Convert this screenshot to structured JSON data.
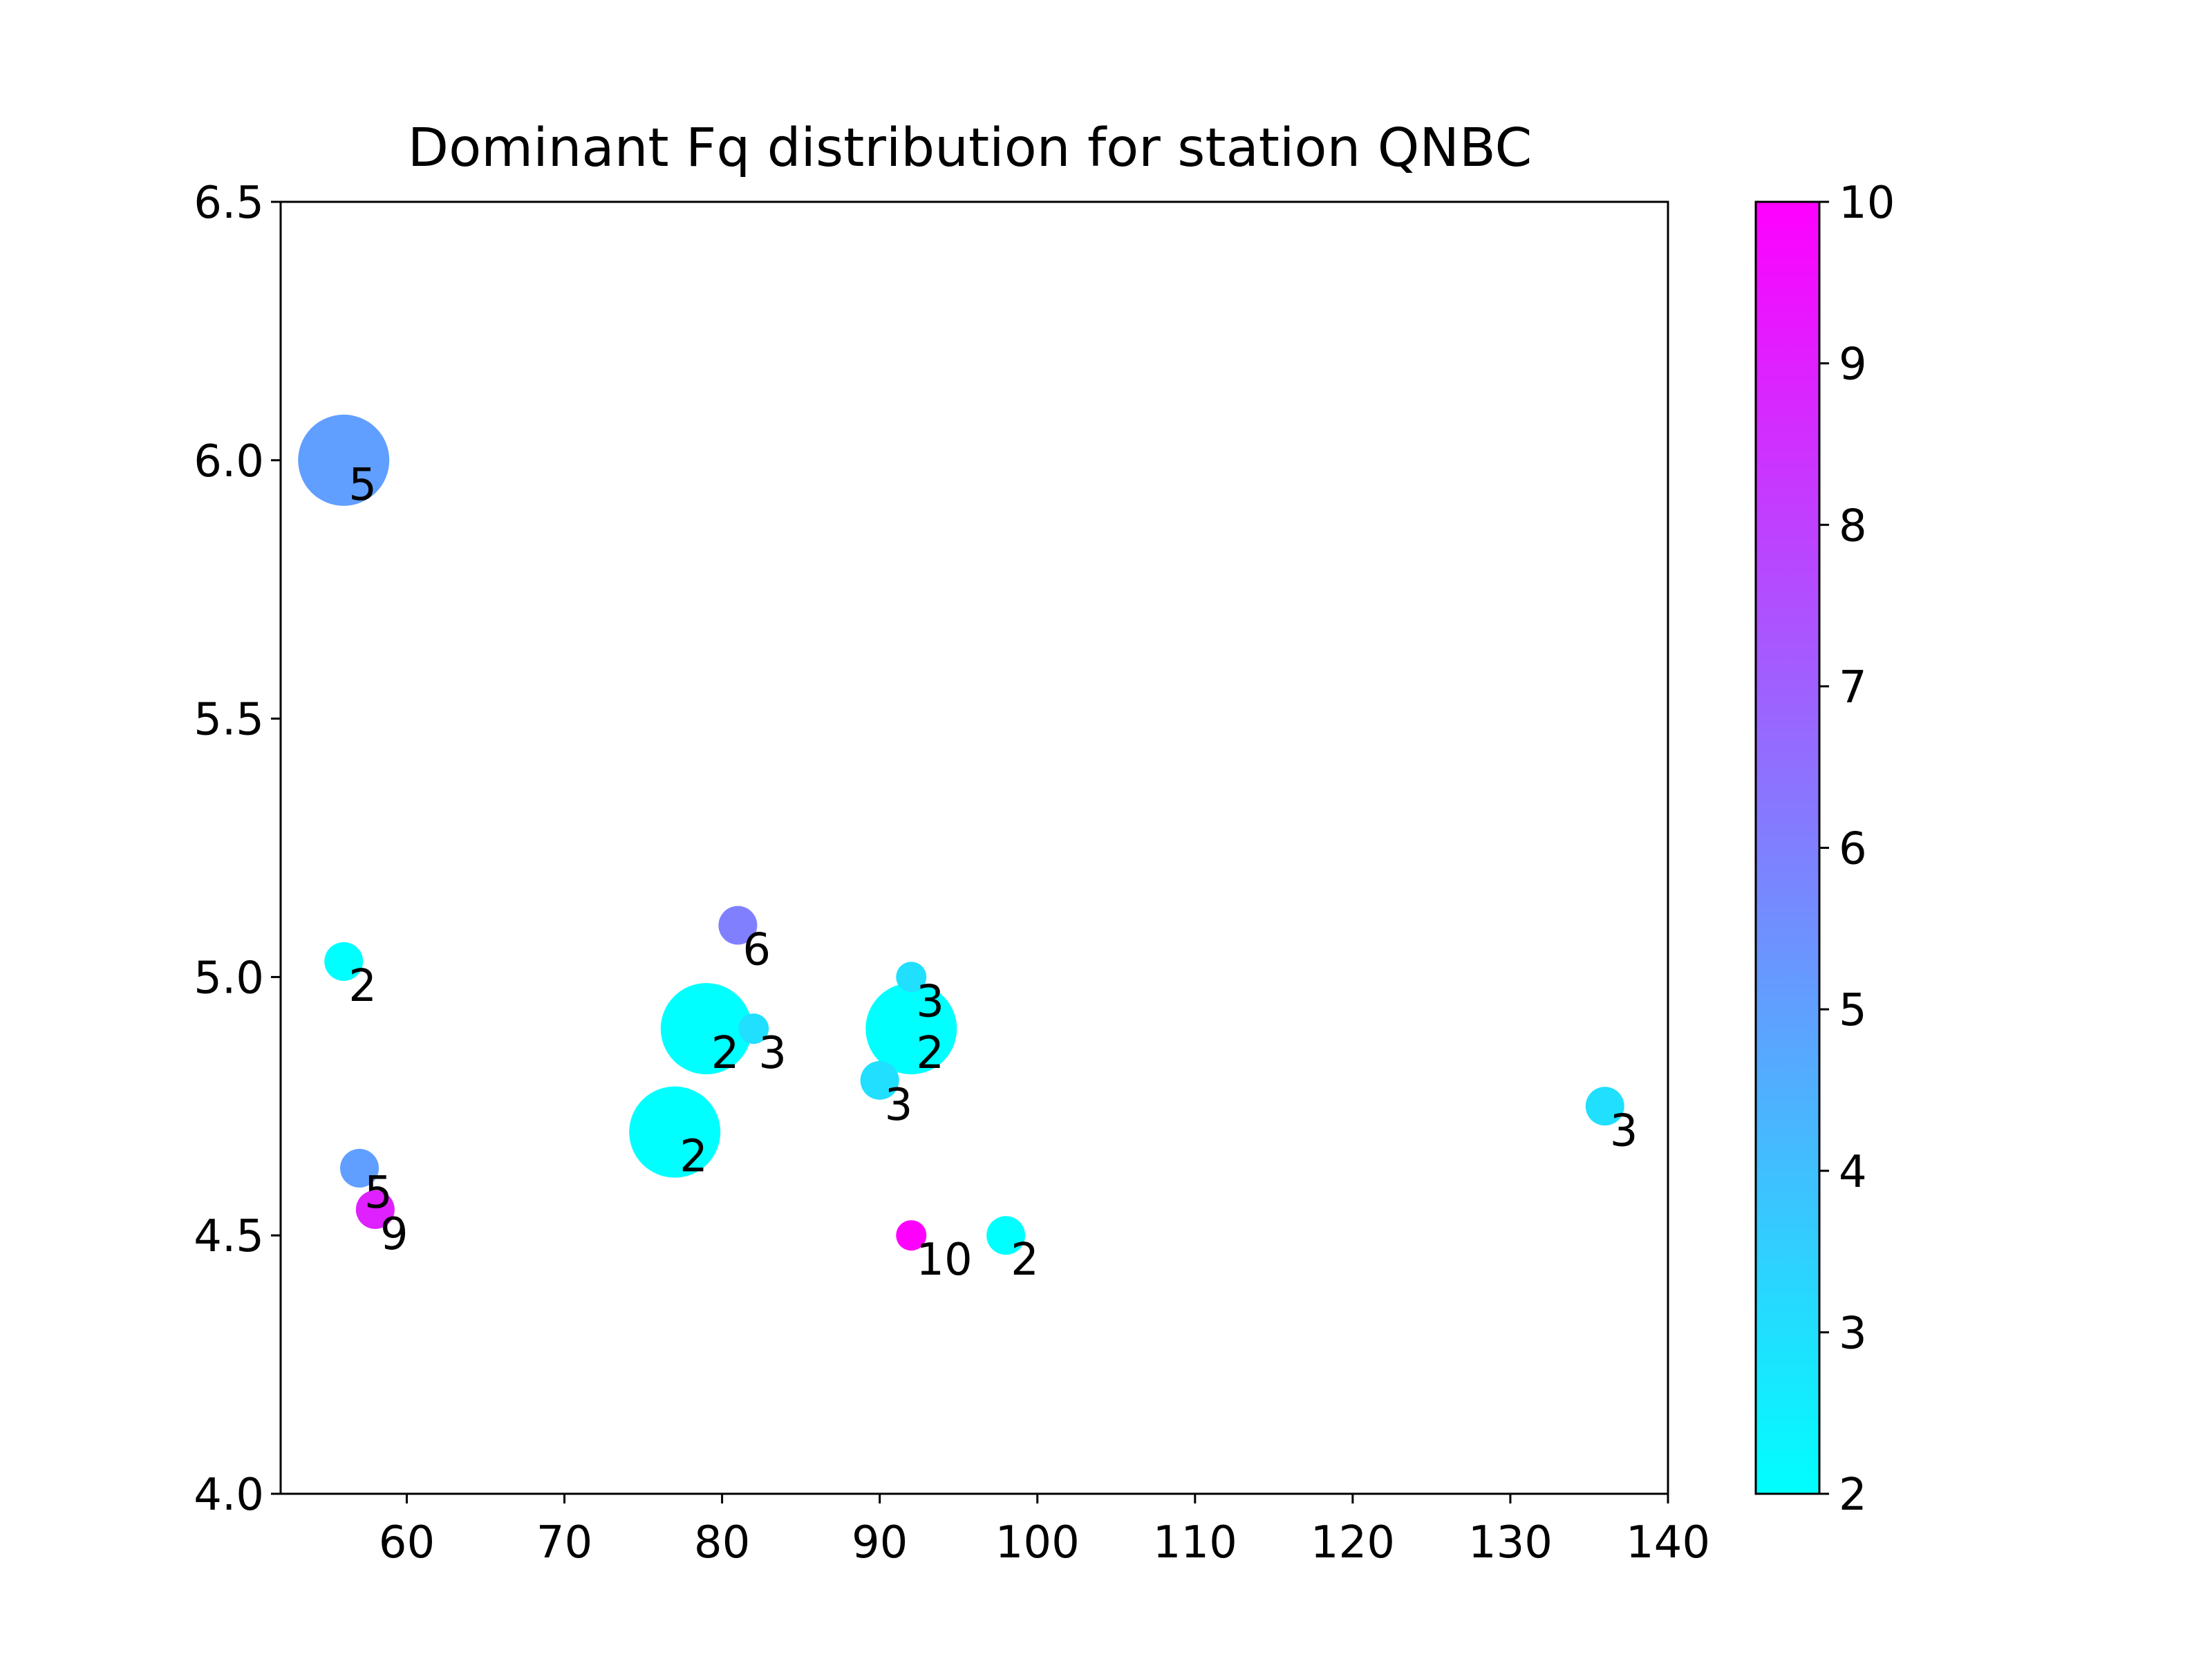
{
  "chart_data": {
    "type": "scatter",
    "title": "Dominant Fq distribution for station QNBC",
    "xlabel": "",
    "ylabel": "",
    "xlim": [
      52,
      140
    ],
    "ylim": [
      4.0,
      6.5
    ],
    "xticks": [
      "60",
      "70",
      "80",
      "90",
      "100",
      "110",
      "120",
      "130",
      "140"
    ],
    "xtick_values": [
      60,
      70,
      80,
      90,
      100,
      110,
      120,
      130,
      140
    ],
    "yticks": [
      "4.0",
      "4.5",
      "5.0",
      "5.5",
      "6.0",
      "6.5"
    ],
    "ytick_values": [
      4.0,
      4.5,
      5.0,
      5.5,
      6.0,
      6.5
    ],
    "grid": false,
    "legend": "none",
    "colormap": "cool",
    "colorbar": {
      "range": [
        2,
        10
      ],
      "ticks": [
        "2",
        "3",
        "4",
        "5",
        "6",
        "7",
        "8",
        "9",
        "10"
      ],
      "tick_values": [
        2,
        3,
        4,
        5,
        6,
        7,
        8,
        9,
        10
      ],
      "color_low": "#00ffff",
      "color_high": "#ff00ff"
    },
    "points": [
      {
        "x": 56,
        "y": 6.0,
        "value": 5,
        "label": "5",
        "size": "large"
      },
      {
        "x": 56,
        "y": 5.03,
        "value": 2,
        "label": "2",
        "size": "small"
      },
      {
        "x": 57,
        "y": 4.63,
        "value": 5,
        "label": "5",
        "size": "small"
      },
      {
        "x": 58,
        "y": 4.55,
        "value": 9,
        "label": "9",
        "size": "small"
      },
      {
        "x": 77,
        "y": 4.7,
        "value": 2,
        "label": "2",
        "size": "large"
      },
      {
        "x": 79,
        "y": 4.9,
        "value": 2,
        "label": "2",
        "size": "large"
      },
      {
        "x": 81,
        "y": 5.1,
        "value": 6,
        "label": "6",
        "size": "small"
      },
      {
        "x": 82,
        "y": 4.9,
        "value": 3,
        "label": "3",
        "size": "tiny"
      },
      {
        "x": 90,
        "y": 4.8,
        "value": 3,
        "label": "3",
        "size": "small"
      },
      {
        "x": 92,
        "y": 5.0,
        "value": 3,
        "label": "3",
        "size": "tiny"
      },
      {
        "x": 92,
        "y": 4.9,
        "value": 2,
        "label": "2",
        "size": "large"
      },
      {
        "x": 92,
        "y": 4.5,
        "value": 10,
        "label": "10",
        "size": "tiny"
      },
      {
        "x": 98,
        "y": 4.5,
        "value": 2,
        "label": "2",
        "size": "small"
      },
      {
        "x": 136,
        "y": 4.75,
        "value": 3,
        "label": "3",
        "size": "small"
      }
    ]
  }
}
